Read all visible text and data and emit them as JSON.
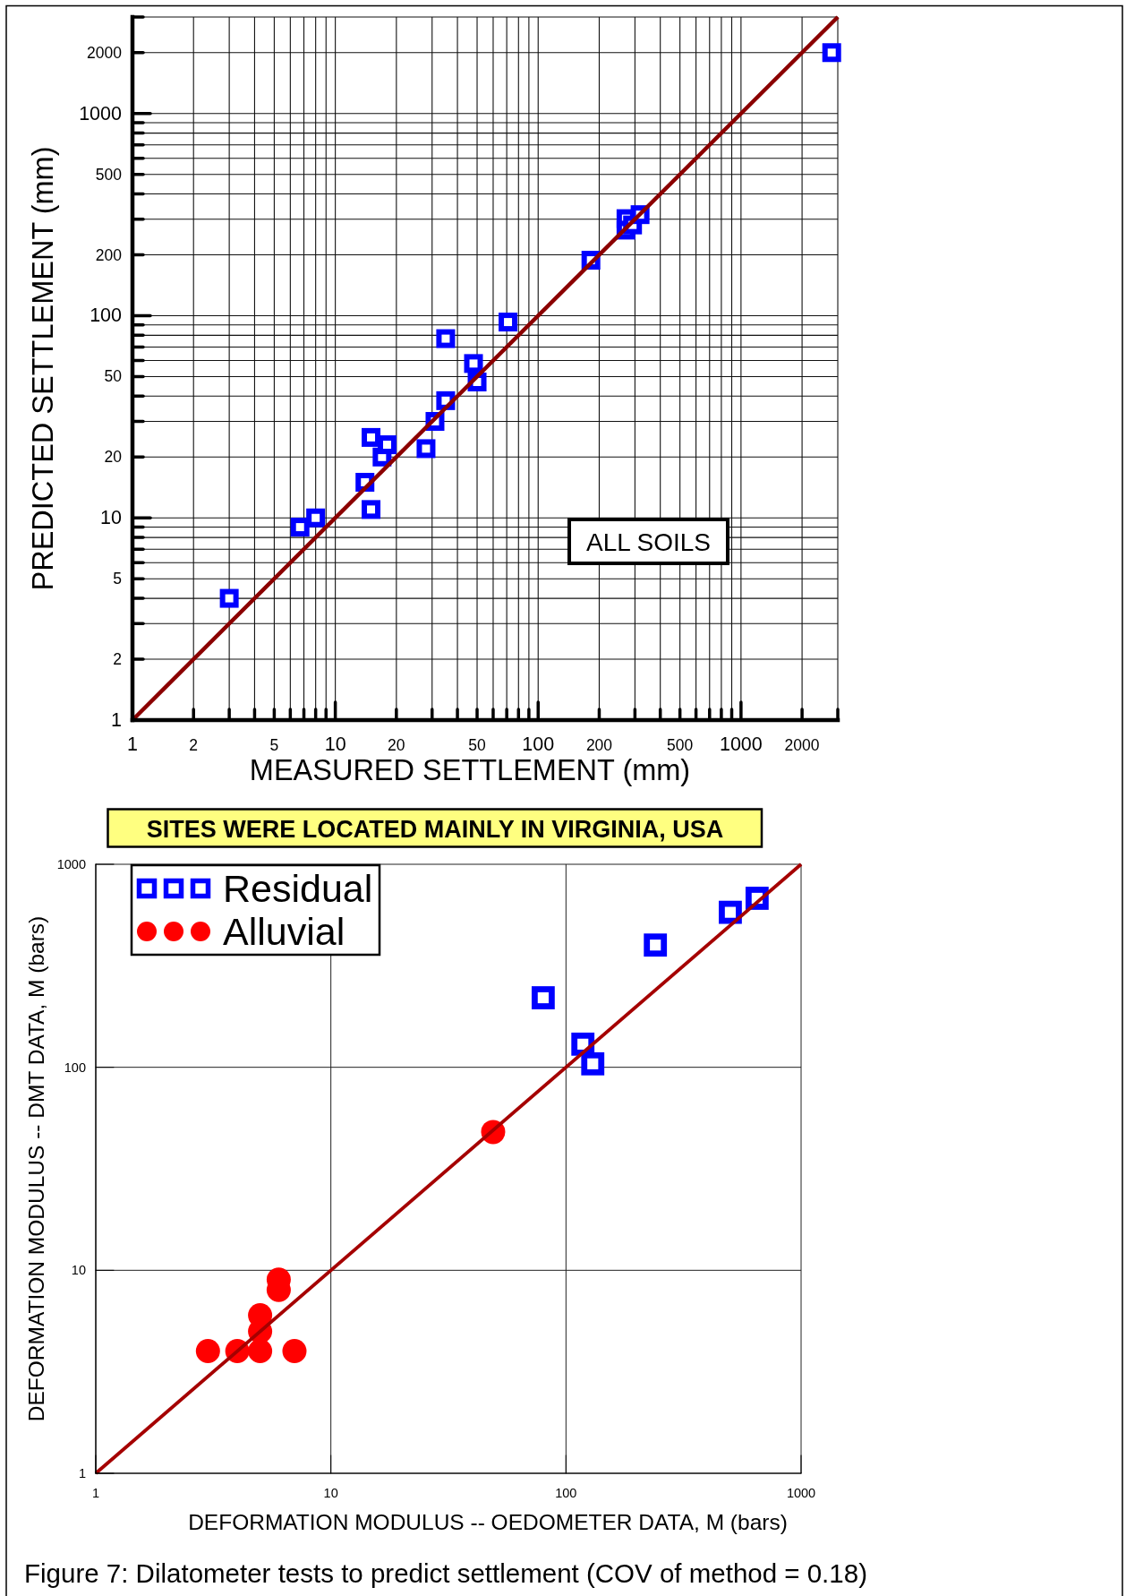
{
  "chart_data": [
    {
      "type": "scatter",
      "xlabel": "MEASURED SETTLEMENT (mm)",
      "ylabel": "PREDICTED SETTLEMENT (mm)",
      "log": "xy",
      "xlim": [
        1,
        3000
      ],
      "ylim": [
        1,
        3000
      ],
      "xticks": [
        1,
        2,
        {
          "value": 3,
          "label": null
        },
        {
          "value": 4,
          "label": null
        },
        5,
        {
          "value": 6,
          "label": null
        },
        {
          "value": 7,
          "label": null
        },
        {
          "value": 8,
          "label": null
        },
        {
          "value": 9,
          "label": null
        },
        10,
        20,
        {
          "value": 30,
          "label": null
        },
        {
          "value": 40,
          "label": null
        },
        50,
        {
          "value": 60,
          "label": null
        },
        {
          "value": 70,
          "label": null
        },
        {
          "value": 80,
          "label": null
        },
        {
          "value": 90,
          "label": null
        },
        100,
        200,
        {
          "value": 300,
          "label": null
        },
        {
          "value": 400,
          "label": null
        },
        500,
        {
          "value": 600,
          "label": null
        },
        {
          "value": 700,
          "label": null
        },
        {
          "value": 800,
          "label": null
        },
        {
          "value": 900,
          "label": null
        },
        1000,
        2000,
        {
          "value": 3000,
          "label": null
        }
      ],
      "yticks": [
        1,
        2,
        {
          "value": 3,
          "label": null
        },
        {
          "value": 4,
          "label": null
        },
        5,
        {
          "value": 6,
          "label": null
        },
        {
          "value": 7,
          "label": null
        },
        {
          "value": 8,
          "label": null
        },
        {
          "value": 9,
          "label": null
        },
        10,
        20,
        {
          "value": 30,
          "label": null
        },
        {
          "value": 40,
          "label": null
        },
        50,
        {
          "value": 60,
          "label": null
        },
        {
          "value": 70,
          "label": null
        },
        {
          "value": 80,
          "label": null
        },
        {
          "value": 90,
          "label": null
        },
        100,
        200,
        {
          "value": 300,
          "label": null
        },
        {
          "value": 400,
          "label": null
        },
        500,
        {
          "value": 600,
          "label": null
        },
        {
          "value": 700,
          "label": null
        },
        {
          "value": 800,
          "label": null
        },
        {
          "value": 900,
          "label": null
        },
        1000,
        2000,
        {
          "value": 3000,
          "label": null
        }
      ],
      "grid": true,
      "annotations": [
        "ALL SOILS"
      ],
      "series": [
        {
          "marker": "square",
          "color": "#0000ff",
          "x": [
            3,
            6.7,
            8,
            14,
            15,
            17,
            18,
            15,
            28,
            31,
            35,
            35,
            48,
            50,
            71,
            182,
            271,
            271,
            292,
            318,
            2800
          ],
          "values": [
            4,
            9,
            10,
            15,
            11,
            20,
            23,
            25,
            22,
            30,
            38,
            77,
            58,
            47,
            93,
            188,
            302,
            265,
            281,
            316,
            2000
          ]
        },
        {
          "type": "line",
          "marker": "none",
          "color": "#8b0000",
          "x": [
            1,
            3000
          ],
          "values": [
            1,
            3000
          ]
        }
      ]
    },
    {
      "type": "scatter",
      "title": "SITES WERE LOCATED MAINLY IN VIRGINIA, USA",
      "xlabel": "DEFORMATION MODULUS -- OEDOMETER DATA, M (bars)",
      "ylabel": "DEFORMATION MODULUS -- DMT DATA, M (bars)",
      "log": "xy",
      "xlim": [
        1,
        1000
      ],
      "ylim": [
        1,
        1000
      ],
      "xticks": [
        1,
        10,
        100,
        1000
      ],
      "yticks": [
        1,
        10,
        100,
        1000
      ],
      "grid": true,
      "legend": "top left",
      "annotations": [
        "Figure 7: Dilatometer tests to predict settlement (COV of method = 0.18)"
      ],
      "series": [
        {
          "name": "Residual",
          "marker": "square",
          "color": "#0000ff",
          "x": [
            80,
            118,
            130,
            240,
            500,
            650
          ],
          "values": [
            220,
            130,
            104,
            400,
            580,
            680
          ]
        },
        {
          "name": "Alluvial",
          "marker": "circle",
          "color": "#ff0000",
          "x": [
            3,
            4,
            5,
            7,
            5,
            5,
            6,
            6,
            49
          ],
          "values": [
            4,
            4,
            4,
            4,
            5,
            6,
            8,
            9,
            48
          ]
        },
        {
          "type": "line",
          "marker": "none",
          "color": "#a50000",
          "x": [
            1,
            1000
          ],
          "values": [
            1,
            1000
          ]
        }
      ]
    }
  ]
}
